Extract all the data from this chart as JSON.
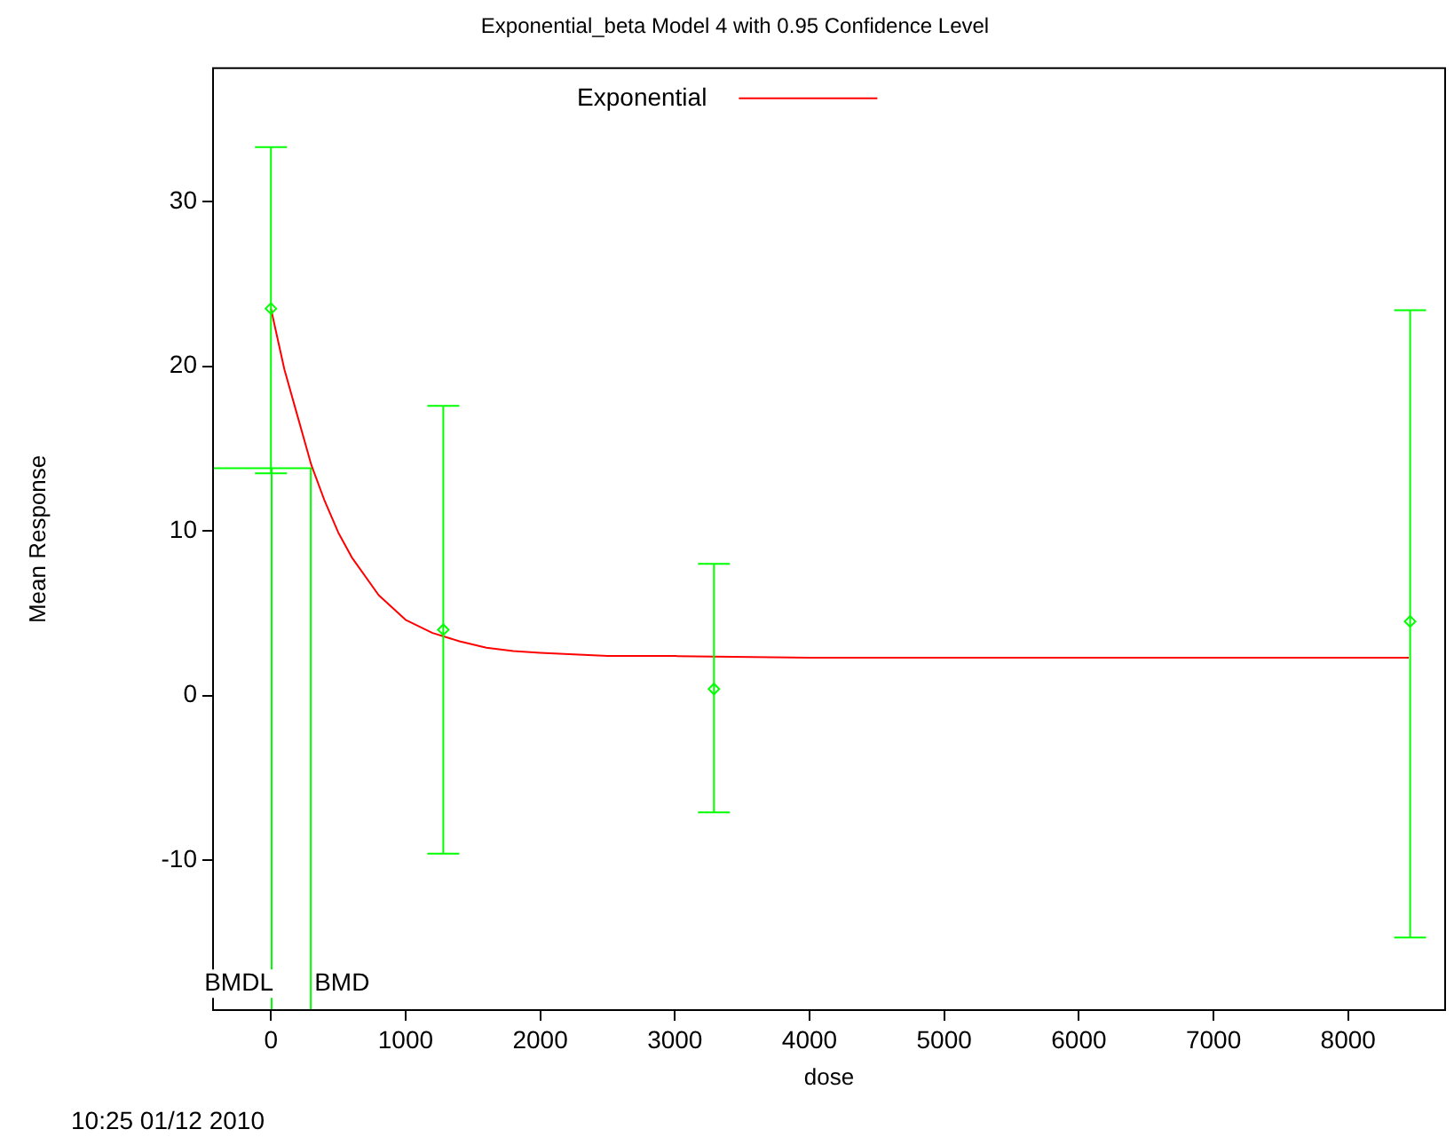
{
  "chart_data": {
    "type": "scatter",
    "title": "Exponential_beta Model 4 with 0.95 Confidence Level",
    "xlabel": "dose",
    "ylabel": "Mean Response",
    "xlim": [
      -430,
      8720
    ],
    "xticks": [
      0,
      1000,
      2000,
      3000,
      4000,
      5000,
      6000,
      7000,
      8000
    ],
    "ylim": [
      -19.1,
      38.1
    ],
    "yticks": [
      -10,
      0,
      10,
      20,
      30
    ],
    "grid": false,
    "legend": "top",
    "marker": "diamond",
    "series": [
      {
        "color": "#00ff00",
        "x": [
          0,
          1280,
          3290,
          8460
        ],
        "values": [
          23.5,
          4.0,
          0.4,
          4.5
        ],
        "errors": [
          [
            13.5,
            33.3
          ],
          [
            -9.6,
            17.6
          ],
          [
            -7.1,
            8.0
          ],
          [
            -14.7,
            23.4
          ]
        ]
      },
      {
        "type": "line",
        "name": "Exponential",
        "color": "#ff0000",
        "marker": "none",
        "x": [
          0,
          100,
          200,
          300,
          400,
          500,
          600,
          800,
          1000,
          1200,
          1400,
          1600,
          1800,
          2000,
          2500,
          3000,
          4000,
          5000,
          6000,
          7000,
          8450
        ],
        "values": [
          23.5,
          19.8,
          16.9,
          14.0,
          11.8,
          9.9,
          8.4,
          6.1,
          4.6,
          3.8,
          3.3,
          2.9,
          2.7,
          2.6,
          2.4,
          2.4,
          2.3,
          2.3,
          2.3,
          2.3,
          2.3
        ]
      },
      {
        "type": "line",
        "color": "#00ff00",
        "marker": "none",
        "x": [
          -430,
          296,
          296
        ],
        "values": [
          13.8,
          13.8,
          -19.1
        ]
      },
      {
        "type": "line",
        "color": "#00ff00",
        "marker": "none",
        "x": [
          5,
          5
        ],
        "values": [
          13.8,
          -19.1
        ]
      }
    ],
    "annotations": [
      {
        "text": "BMDL",
        "x": 5,
        "y": -17.5
      },
      {
        "text": "BMD",
        "x": 296,
        "y": -17.5
      },
      "10:25 01/12 2010"
    ]
  }
}
